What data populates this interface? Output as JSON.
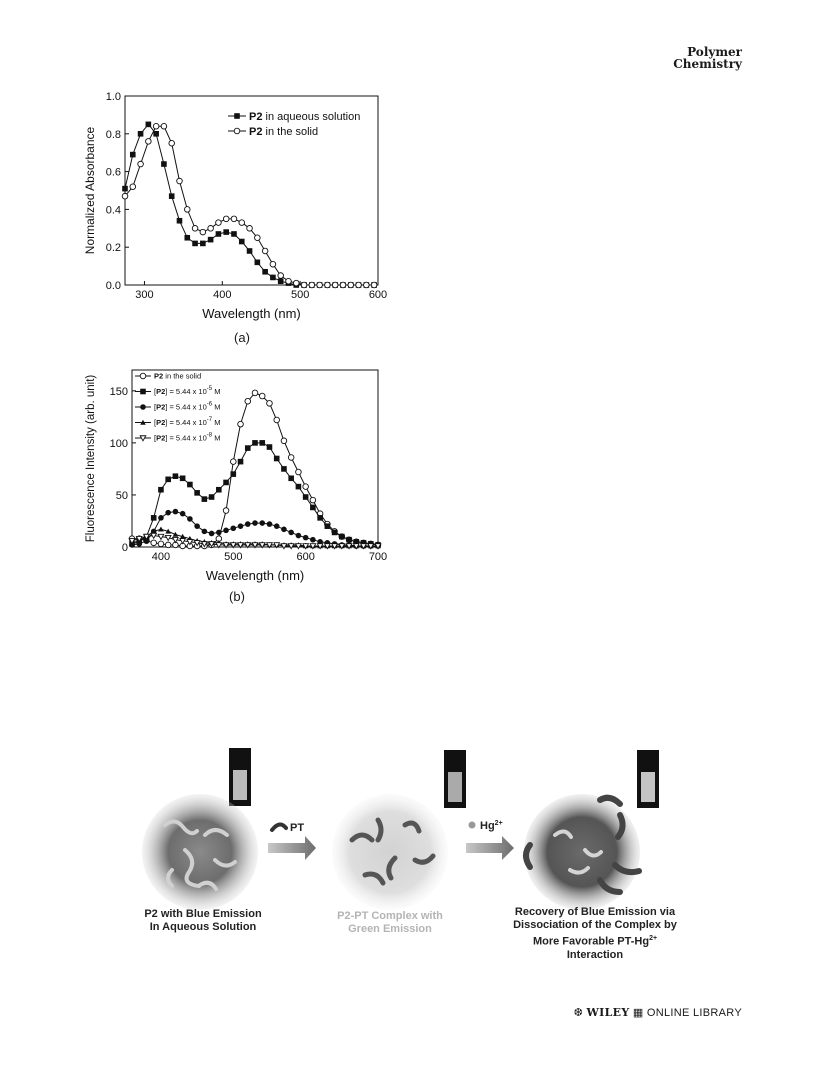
{
  "journal": {
    "line1": "Polymer",
    "line2": "Chemistry"
  },
  "figure_a": {
    "caption": "(a)",
    "chart_data": {
      "type": "line",
      "xlabel": "Wavelength (nm)",
      "ylabel": "Normalized Absorbance",
      "xlim": [
        275,
        600
      ],
      "ylim": [
        0,
        1.0
      ],
      "xticks": [
        300,
        400,
        500,
        600
      ],
      "yticks": [
        0.0,
        0.2,
        0.4,
        0.6,
        0.8,
        1.0
      ],
      "ytick_labels": [
        "0.0",
        "0.2",
        "0.4",
        "0.6",
        "0.8",
        "1.0"
      ],
      "grid": false,
      "legend_position": "top-right",
      "series": [
        {
          "name_bold": "P2",
          "name_rest": " in aqueous solution",
          "marker": "square-filled",
          "x": [
            275,
            285,
            295,
            305,
            315,
            325,
            335,
            345,
            355,
            365,
            375,
            385,
            395,
            405,
            415,
            425,
            435,
            445,
            455,
            465,
            475,
            485,
            495,
            505,
            515,
            525,
            535,
            545,
            555,
            565,
            575,
            585,
            595
          ],
          "y": [
            0.51,
            0.69,
            0.8,
            0.85,
            0.8,
            0.64,
            0.47,
            0.34,
            0.25,
            0.22,
            0.22,
            0.24,
            0.27,
            0.28,
            0.27,
            0.23,
            0.18,
            0.12,
            0.07,
            0.04,
            0.02,
            0.01,
            0.0,
            0.0,
            0.0,
            0.0,
            0.0,
            0.0,
            0.0,
            0.0,
            0.0,
            0.0,
            0.0
          ]
        },
        {
          "name_bold": "P2",
          "name_rest": " in the solid",
          "marker": "circle-open",
          "x": [
            275,
            285,
            295,
            305,
            315,
            325,
            335,
            345,
            355,
            365,
            375,
            385,
            395,
            405,
            415,
            425,
            435,
            445,
            455,
            465,
            475,
            485,
            495,
            505,
            515,
            525,
            535,
            545,
            555,
            565,
            575,
            585,
            595
          ],
          "y": [
            0.47,
            0.52,
            0.64,
            0.76,
            0.84,
            0.84,
            0.75,
            0.55,
            0.4,
            0.3,
            0.28,
            0.3,
            0.33,
            0.35,
            0.35,
            0.33,
            0.3,
            0.25,
            0.18,
            0.11,
            0.05,
            0.02,
            0.01,
            0.0,
            0.0,
            0.0,
            0.0,
            0.0,
            0.0,
            0.0,
            0.0,
            0.0,
            0.0
          ]
        }
      ]
    }
  },
  "figure_b": {
    "caption": "(b)",
    "chart_data": {
      "type": "line",
      "xlabel": "Wavelength (nm)",
      "ylabel": "Fluorescence Intensity (arb. unit)",
      "xlim": [
        360,
        700
      ],
      "ylim": [
        0,
        170
      ],
      "xticks": [
        400,
        500,
        600,
        700
      ],
      "yticks": [
        0,
        50,
        100,
        150
      ],
      "grid": false,
      "legend_position": "top-left",
      "series": [
        {
          "name_prefix": "",
          "name_bold": "P2",
          "name_rest": " in the solid",
          "exponent": "",
          "marker": "circle-open",
          "x": [
            360,
            370,
            380,
            390,
            400,
            410,
            420,
            430,
            440,
            450,
            460,
            470,
            480,
            490,
            500,
            510,
            520,
            530,
            540,
            550,
            560,
            570,
            580,
            590,
            600,
            610,
            620,
            630,
            640,
            650,
            660,
            670,
            680,
            690,
            700
          ],
          "y": [
            8,
            8,
            6,
            4,
            3,
            2,
            2,
            1,
            1,
            1,
            1,
            2,
            8,
            35,
            82,
            118,
            140,
            148,
            145,
            138,
            122,
            102,
            86,
            72,
            58,
            45,
            32,
            22,
            15,
            10,
            7,
            5,
            4,
            3,
            2
          ]
        },
        {
          "name_prefix": "[",
          "name_bold": "P2",
          "name_rest": "] = 5.44 x 10",
          "exponent": "-5",
          "unit": " M",
          "marker": "square-filled",
          "x": [
            360,
            370,
            380,
            390,
            400,
            410,
            420,
            430,
            440,
            450,
            460,
            470,
            480,
            490,
            500,
            510,
            520,
            530,
            540,
            550,
            560,
            570,
            580,
            590,
            600,
            610,
            620,
            630,
            640,
            650,
            660,
            670,
            680,
            690,
            700
          ],
          "y": [
            3,
            5,
            10,
            28,
            55,
            65,
            68,
            66,
            60,
            52,
            46,
            48,
            55,
            62,
            70,
            82,
            95,
            100,
            100,
            96,
            85,
            75,
            66,
            58,
            48,
            38,
            28,
            20,
            14,
            10,
            7,
            5,
            4,
            3,
            2
          ]
        },
        {
          "name_prefix": "[",
          "name_bold": "P2",
          "name_rest": "] = 5.44 x 10",
          "exponent": "-6",
          "unit": " M",
          "marker": "circle-filled",
          "x": [
            360,
            370,
            380,
            390,
            400,
            410,
            420,
            430,
            440,
            450,
            460,
            470,
            480,
            490,
            500,
            510,
            520,
            530,
            540,
            550,
            560,
            570,
            580,
            590,
            600,
            610,
            620,
            630,
            640,
            650,
            660,
            670,
            680,
            690,
            700
          ],
          "y": [
            2,
            3,
            6,
            15,
            28,
            33,
            34,
            32,
            27,
            20,
            15,
            13,
            14,
            16,
            18,
            20,
            22,
            23,
            23,
            22,
            20,
            17,
            14,
            11,
            9,
            7,
            5,
            4,
            3,
            2,
            2,
            1,
            1,
            1,
            1
          ]
        },
        {
          "name_prefix": "[",
          "name_bold": "P2",
          "name_rest": "] = 5.44 x 10",
          "exponent": "-7",
          "unit": " M",
          "marker": "triangle-filled",
          "x": [
            360,
            370,
            380,
            390,
            400,
            410,
            420,
            430,
            440,
            450,
            460,
            470,
            480,
            490,
            500,
            510,
            520,
            530,
            540,
            550,
            560,
            570,
            580,
            590,
            600,
            610,
            620,
            630,
            640,
            650,
            660,
            670,
            680,
            690,
            700
          ],
          "y": [
            4,
            6,
            10,
            15,
            17,
            15,
            12,
            10,
            8,
            6,
            5,
            4,
            4,
            3,
            3,
            3,
            3,
            3,
            3,
            2,
            2,
            2,
            2,
            2,
            1,
            1,
            1,
            1,
            1,
            1,
            1,
            1,
            1,
            1,
            1
          ]
        },
        {
          "name_prefix": "[",
          "name_bold": "P2",
          "name_rest": "] = 5.44 x 10",
          "exponent": "-8",
          "unit": " M",
          "marker": "triangle-open-down",
          "x": [
            360,
            370,
            380,
            390,
            400,
            410,
            420,
            430,
            440,
            450,
            460,
            470,
            480,
            490,
            500,
            510,
            520,
            530,
            540,
            550,
            560,
            570,
            580,
            590,
            600,
            610,
            620,
            630,
            640,
            650,
            660,
            670,
            680,
            690,
            700
          ],
          "y": [
            6,
            8,
            10,
            11,
            10,
            9,
            7,
            6,
            5,
            4,
            3,
            3,
            2,
            2,
            2,
            2,
            2,
            2,
            2,
            2,
            2,
            1,
            1,
            1,
            1,
            1,
            1,
            1,
            1,
            1,
            1,
            1,
            1,
            1,
            1
          ]
        }
      ]
    }
  },
  "scheme": {
    "arrow1_label": "PT",
    "arrow2_label": "Hg",
    "arrow2_label_sup": "2+",
    "stage1_line1": "P2 with Blue Emission",
    "stage1_line2": "In Aqueous Solution",
    "stage2_line1": "P2-PT Complex with",
    "stage2_line2": "Green Emission",
    "stage3_line1": "Recovery of Blue Emission via",
    "stage3_line2": "Dissociation of the Complex by",
    "stage3_line3_main": "More Favorable PT-Hg",
    "stage3_line3_sup": "2+",
    "stage3_line4": "Interaction"
  },
  "footer": {
    "wiley": "WILEY",
    "library": "ONLINE LIBRARY"
  }
}
